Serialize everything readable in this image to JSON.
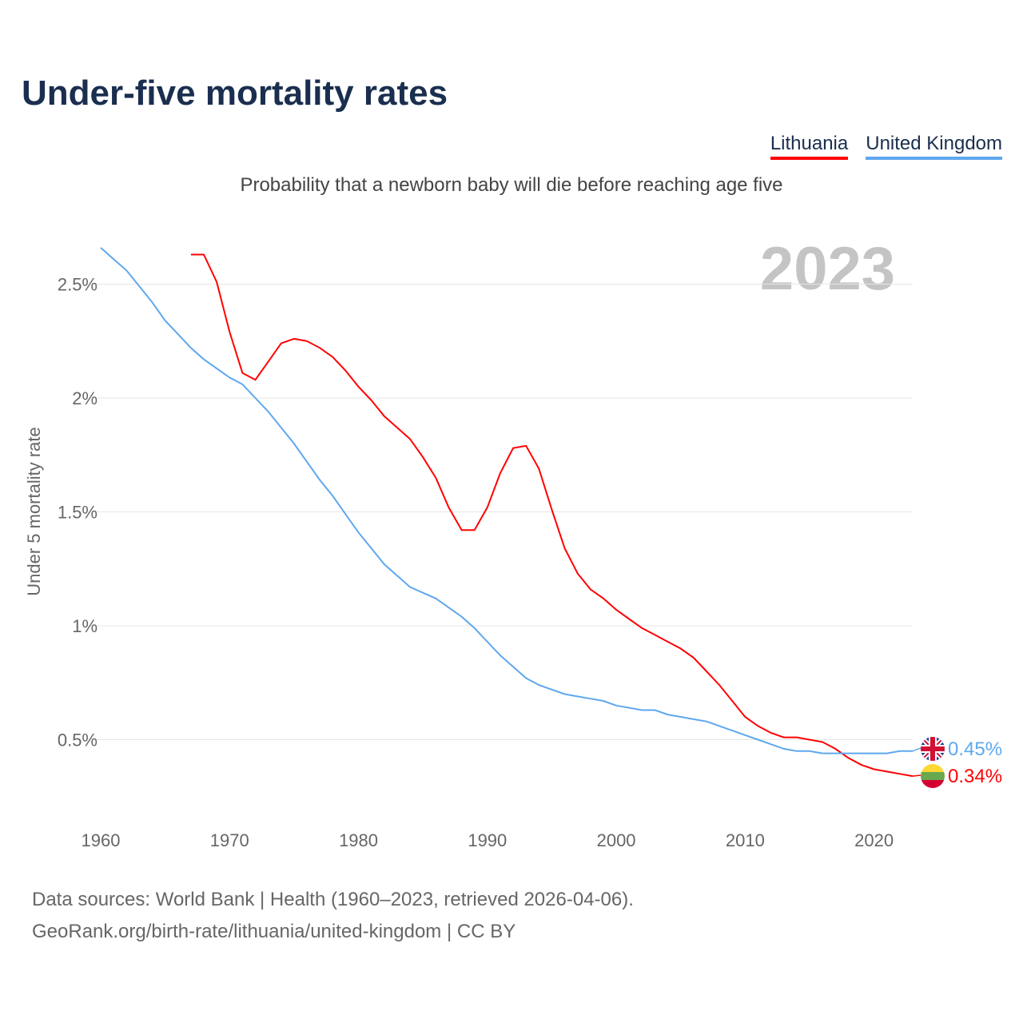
{
  "chart_data": {
    "type": "line",
    "title": "Under-five mortality rates",
    "subtitle": "Probability that a newborn baby will die before reaching age five",
    "ylabel": "Under 5 mortality rate",
    "xlabel": "",
    "year_watermark": "2023",
    "xlim": [
      1960,
      2023
    ],
    "ylim": [
      0,
      2.75
    ],
    "x_ticks": [
      1960,
      1970,
      1980,
      1990,
      2000,
      2010,
      2020
    ],
    "y_ticks": [
      {
        "v": 0.5,
        "label": "0.5%"
      },
      {
        "v": 1,
        "label": "1%"
      },
      {
        "v": 1.5,
        "label": "1.5%"
      },
      {
        "v": 2,
        "label": "2%"
      },
      {
        "v": 2.5,
        "label": "2.5%"
      }
    ],
    "grid": true,
    "legend_position": "top-right",
    "series": [
      {
        "name": "Lithuania",
        "color": "#ff0000",
        "end_label": "0.34%",
        "start_year": 1967,
        "values": [
          2.63,
          2.63,
          2.51,
          2.29,
          2.11,
          2.08,
          2.16,
          2.24,
          2.26,
          2.25,
          2.22,
          2.18,
          2.12,
          2.05,
          1.99,
          1.92,
          1.87,
          1.82,
          1.74,
          1.65,
          1.52,
          1.42,
          1.42,
          1.52,
          1.67,
          1.78,
          1.79,
          1.69,
          1.51,
          1.34,
          1.23,
          1.16,
          1.12,
          1.07,
          1.03,
          0.99,
          0.96,
          0.93,
          0.9,
          0.86,
          0.8,
          0.74,
          0.67,
          0.6,
          0.56,
          0.53,
          0.51,
          0.51,
          0.5,
          0.49,
          0.46,
          0.42,
          0.39,
          0.37,
          0.36,
          0.35,
          0.34
        ]
      },
      {
        "name": "United Kingdom",
        "color": "#5ea8ee",
        "end_label": "0.45%",
        "start_year": 1960,
        "values": [
          2.66,
          2.61,
          2.56,
          2.49,
          2.42,
          2.34,
          2.28,
          2.22,
          2.17,
          2.13,
          2.09,
          2.06,
          2.0,
          1.94,
          1.87,
          1.8,
          1.72,
          1.64,
          1.57,
          1.49,
          1.41,
          1.34,
          1.27,
          1.22,
          1.17,
          1.145,
          1.12,
          1.08,
          1.04,
          0.99,
          0.93,
          0.87,
          0.82,
          0.77,
          0.74,
          0.72,
          0.7,
          0.69,
          0.68,
          0.67,
          0.65,
          0.64,
          0.63,
          0.63,
          0.61,
          0.6,
          0.59,
          0.58,
          0.56,
          0.54,
          0.52,
          0.5,
          0.48,
          0.46,
          0.45,
          0.45,
          0.44,
          0.44,
          0.44,
          0.44,
          0.44,
          0.44,
          0.45,
          0.45
        ]
      }
    ]
  },
  "footer": {
    "line1": "Data sources: World Bank | Health (1960–2023, retrieved 2026-04-06).",
    "line2": "GeoRank.org/birth-rate/lithuania/united-kingdom | CC BY"
  }
}
